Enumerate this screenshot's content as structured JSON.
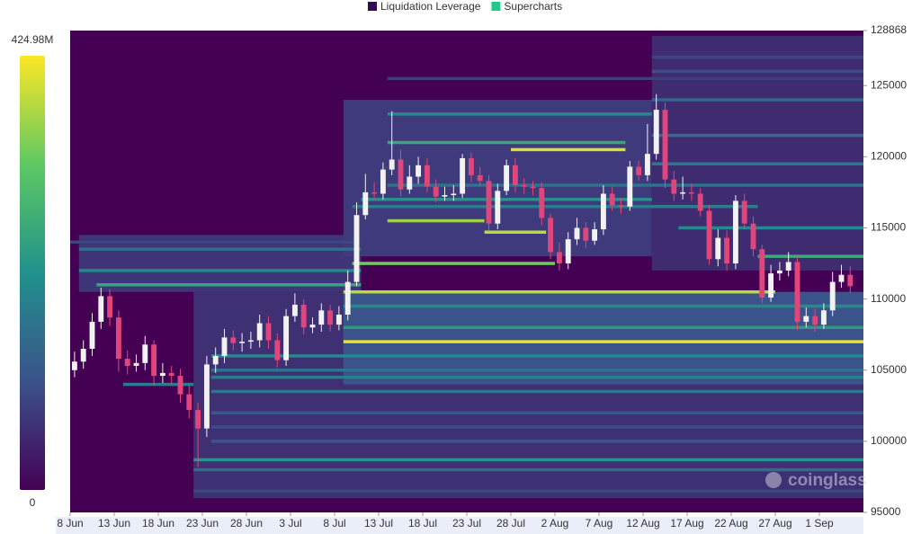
{
  "chart_data": {
    "type": "heatmap",
    "legend": [
      {
        "name": "Liquidation Leverage",
        "color": "#2e0b52"
      },
      {
        "name": "Supercharts",
        "color": "#22c98f"
      }
    ],
    "watermark": "coinglass",
    "colorscale": [
      "#440154",
      "#3b528b",
      "#21918c",
      "#5ec962",
      "#fde725"
    ],
    "colorbar": {
      "min": 0,
      "max": {
        "value": 424.98,
        "label": "424.98M"
      }
    },
    "xlim": [
      0,
      90
    ],
    "xticks": [
      {
        "value": 0,
        "label": "8 Jun"
      },
      {
        "value": 5,
        "label": "13 Jun"
      },
      {
        "value": 10,
        "label": "18 Jun"
      },
      {
        "value": 15,
        "label": "23 Jun"
      },
      {
        "value": 20,
        "label": "28 Jun"
      },
      {
        "value": 25,
        "label": "3 Jul"
      },
      {
        "value": 30,
        "label": "8 Jul"
      },
      {
        "value": 35,
        "label": "13 Jul"
      },
      {
        "value": 40,
        "label": "18 Jul"
      },
      {
        "value": 45,
        "label": "23 Jul"
      },
      {
        "value": 50,
        "label": "28 Jul"
      },
      {
        "value": 55,
        "label": "2 Aug"
      },
      {
        "value": 60,
        "label": "7 Aug"
      },
      {
        "value": 65,
        "label": "12 Aug"
      },
      {
        "value": 70,
        "label": "17 Aug"
      },
      {
        "value": 75,
        "label": "22 Aug"
      },
      {
        "value": 80,
        "label": "27 Aug"
      },
      {
        "value": 85,
        "label": "1 Sep"
      }
    ],
    "ylim": [
      95000,
      128868
    ],
    "yticks": [
      95000,
      100000,
      105000,
      110000,
      115000,
      120000,
      125000,
      128868
    ],
    "zones": [
      {
        "low": 96000,
        "high": 110500,
        "start": 14,
        "end": 90,
        "value": 60
      },
      {
        "low": 104000,
        "high": 110500,
        "start": 31,
        "end": 90,
        "value": 110
      },
      {
        "low": 110500,
        "high": 114500,
        "start": 1,
        "end": 33,
        "value": 70
      },
      {
        "low": 113000,
        "high": 124000,
        "start": 31,
        "end": 66,
        "value": 75
      },
      {
        "low": 112000,
        "high": 128500,
        "start": 66,
        "end": 90,
        "value": 55
      }
    ],
    "levels": [
      {
        "price": 107000,
        "start": 31,
        "end": 90,
        "value": 410
      },
      {
        "price": 110500,
        "start": 31,
        "end": 80,
        "value": 380
      },
      {
        "price": 111000,
        "start": 3,
        "end": 33,
        "value": 250
      },
      {
        "price": 112500,
        "start": 32,
        "end": 55,
        "value": 330
      },
      {
        "price": 115500,
        "start": 36,
        "end": 47,
        "value": 360
      },
      {
        "price": 114700,
        "start": 47,
        "end": 54,
        "value": 380
      },
      {
        "price": 120500,
        "start": 50,
        "end": 63,
        "value": 400
      },
      {
        "price": 121000,
        "start": 36,
        "end": 63,
        "value": 250
      },
      {
        "price": 123000,
        "start": 36,
        "end": 66,
        "value": 200
      },
      {
        "price": 98700,
        "start": 14,
        "end": 90,
        "value": 220
      },
      {
        "price": 98000,
        "start": 14,
        "end": 90,
        "value": 150
      },
      {
        "price": 96500,
        "start": 14,
        "end": 90,
        "value": 90
      },
      {
        "price": 100000,
        "start": 16,
        "end": 90,
        "value": 110
      },
      {
        "price": 101000,
        "start": 16,
        "end": 90,
        "value": 100
      },
      {
        "price": 102000,
        "start": 16,
        "end": 90,
        "value": 120
      },
      {
        "price": 103500,
        "start": 16,
        "end": 90,
        "value": 170
      },
      {
        "price": 104500,
        "start": 16,
        "end": 90,
        "value": 180
      },
      {
        "price": 105000,
        "start": 16,
        "end": 90,
        "value": 160
      },
      {
        "price": 106000,
        "start": 16,
        "end": 90,
        "value": 200
      },
      {
        "price": 108000,
        "start": 31,
        "end": 90,
        "value": 230
      },
      {
        "price": 109500,
        "start": 31,
        "end": 90,
        "value": 200
      },
      {
        "price": 104000,
        "start": 6,
        "end": 14,
        "value": 180
      },
      {
        "price": 112000,
        "start": 1,
        "end": 33,
        "value": 200
      },
      {
        "price": 113500,
        "start": 1,
        "end": 33,
        "value": 150
      },
      {
        "price": 114000,
        "start": 0,
        "end": 33,
        "value": 90
      },
      {
        "price": 116500,
        "start": 32,
        "end": 78,
        "value": 180
      },
      {
        "price": 117000,
        "start": 33,
        "end": 66,
        "value": 220
      },
      {
        "price": 118000,
        "start": 36,
        "end": 90,
        "value": 160
      },
      {
        "price": 119500,
        "start": 66,
        "end": 90,
        "value": 170
      },
      {
        "price": 121500,
        "start": 66,
        "end": 90,
        "value": 150
      },
      {
        "price": 124000,
        "start": 66,
        "end": 90,
        "value": 140
      },
      {
        "price": 125500,
        "start": 36,
        "end": 90,
        "value": 80
      },
      {
        "price": 126000,
        "start": 66,
        "end": 90,
        "value": 100
      },
      {
        "price": 127000,
        "start": 66,
        "end": 90,
        "value": 90
      },
      {
        "price": 115000,
        "start": 69,
        "end": 90,
        "value": 200
      },
      {
        "price": 113000,
        "start": 78,
        "end": 90,
        "value": 260
      }
    ],
    "candles": {
      "up_color": "#f2f2f2",
      "down_color": "#e0457b",
      "open": [
        105000,
        105600,
        106500,
        108400,
        110200,
        108700,
        105800,
        105300,
        105500,
        106800,
        104600,
        104800,
        104600,
        103300,
        102200,
        100900,
        105400,
        106000,
        107300,
        106900,
        107000,
        107100,
        108300,
        107100,
        105700,
        108800,
        109600,
        108000,
        108200,
        109200,
        108200,
        108900,
        111200,
        115900,
        117500,
        117400,
        119100,
        119800,
        117700,
        118600,
        119400,
        117900,
        117200,
        117300,
        117400,
        119900,
        118700,
        118300,
        115300,
        117600,
        119400,
        118000,
        117900,
        117800,
        115700,
        113300,
        112500,
        114200,
        115000,
        114100,
        114900,
        117400,
        116600,
        116500,
        119300,
        118700,
        120200,
        123300,
        118400,
        117400,
        117500,
        117400,
        116200,
        112800,
        114300,
        112500,
        116900,
        115300,
        113500,
        110100,
        111800,
        112000,
        112600,
        108400,
        108800,
        108200,
        109200,
        111200,
        111700
      ],
      "high": [
        106300,
        107100,
        109000,
        110800,
        110700,
        109200,
        106400,
        106100,
        107400,
        107100,
        105500,
        105300,
        105100,
        103900,
        102700,
        106000,
        106600,
        107900,
        107800,
        107600,
        107700,
        108900,
        108800,
        107600,
        109300,
        110400,
        110000,
        108700,
        109700,
        109600,
        109500,
        112000,
        116800,
        118800,
        118200,
        119600,
        123200,
        120500,
        119400,
        120000,
        119900,
        118400,
        117900,
        118000,
        120200,
        120300,
        119300,
        118700,
        118100,
        119800,
        119900,
        118500,
        118300,
        118200,
        116000,
        114000,
        114700,
        115700,
        115400,
        115400,
        118000,
        117900,
        117100,
        119700,
        119700,
        122300,
        124400,
        123800,
        119000,
        118600,
        118100,
        117800,
        116600,
        114900,
        114800,
        117300,
        117400,
        115800,
        113800,
        112400,
        112600,
        113300,
        113000,
        109400,
        109300,
        109700,
        111900,
        112400,
        112300
      ],
      "low": [
        104500,
        105100,
        106000,
        107900,
        108100,
        104900,
        104700,
        104900,
        105000,
        103900,
        104100,
        104000,
        102700,
        101600,
        98200,
        100300,
        104800,
        105500,
        106400,
        106300,
        106500,
        106600,
        106500,
        105200,
        105300,
        108400,
        107500,
        107600,
        107700,
        107700,
        107800,
        108500,
        110900,
        115600,
        116900,
        117000,
        118700,
        117200,
        117400,
        118100,
        117500,
        116800,
        116900,
        116900,
        117100,
        118200,
        117900,
        114800,
        114900,
        117300,
        117500,
        117400,
        117300,
        115200,
        112800,
        112000,
        112100,
        113800,
        113600,
        113800,
        114500,
        116200,
        116000,
        116200,
        118300,
        118300,
        119800,
        117800,
        116900,
        117000,
        116900,
        115800,
        112400,
        112300,
        112000,
        112100,
        114900,
        113000,
        109700,
        109800,
        111300,
        111600,
        107800,
        108000,
        107700,
        107900,
        108800,
        110800,
        110400
      ],
      "close": [
        105600,
        106500,
        108400,
        110200,
        108700,
        105800,
        105300,
        105500,
        106800,
        104600,
        104800,
        104600,
        103300,
        102200,
        100900,
        105400,
        106000,
        107300,
        106900,
        107000,
        107100,
        108300,
        107100,
        105700,
        108800,
        109600,
        108000,
        108200,
        109200,
        108200,
        108900,
        111200,
        115900,
        117500,
        117400,
        119100,
        119800,
        117700,
        118600,
        119400,
        117900,
        117200,
        117300,
        117400,
        119900,
        118700,
        118300,
        115300,
        117600,
        119400,
        118000,
        117900,
        117800,
        115700,
        113300,
        112500,
        114200,
        115000,
        114100,
        114900,
        117400,
        116600,
        116500,
        119300,
        118700,
        120200,
        123300,
        118400,
        117400,
        117500,
        117400,
        116200,
        112800,
        114300,
        112500,
        116900,
        115300,
        113500,
        110100,
        111800,
        112000,
        112600,
        108400,
        108800,
        108200,
        109200,
        111200,
        111700,
        110900
      ]
    }
  }
}
